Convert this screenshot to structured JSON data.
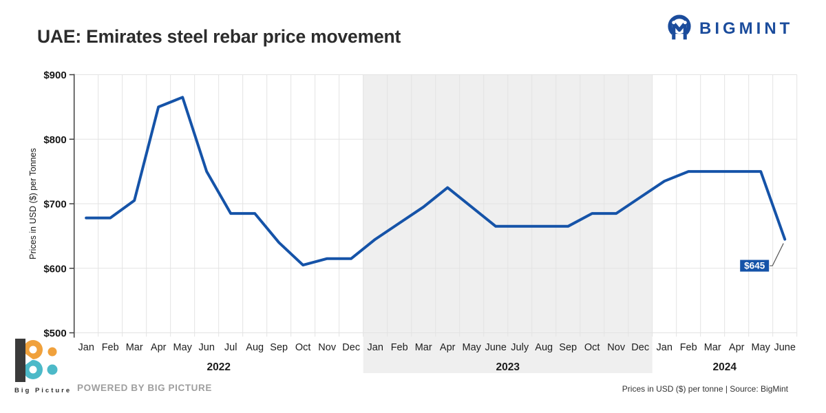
{
  "header": {
    "title": "UAE: Emirates steel rebar price movement",
    "brand": "BIGMINT"
  },
  "chart_data": {
    "type": "line",
    "title": "UAE: Emirates steel rebar price movement",
    "series_name": "Emirates steel rebar price",
    "ylabel": "Prices in USD ($) per Tonnes",
    "xlabel": "",
    "ylim": [
      500,
      900
    ],
    "grid": true,
    "legend": "none",
    "yticks": [
      {
        "label": "$900",
        "value": 900
      },
      {
        "label": "$800",
        "value": 800
      },
      {
        "label": "$700",
        "value": 700
      },
      {
        "label": "$600",
        "value": 600
      },
      {
        "label": "$500",
        "value": 500
      }
    ],
    "groups": [
      {
        "year": "2022",
        "shaded": false,
        "months": [
          "Jan",
          "Feb",
          "Mar",
          "Apr",
          "May",
          "Jun",
          "Jul",
          "Aug",
          "Sep",
          "Oct",
          "Nov",
          "Dec"
        ],
        "values": [
          678,
          678,
          705,
          850,
          865,
          750,
          685,
          685,
          640,
          605,
          615,
          615
        ]
      },
      {
        "year": "2023",
        "shaded": true,
        "months": [
          "Jan",
          "Feb",
          "Mar",
          "Apr",
          "May",
          "June",
          "July",
          "Aug",
          "Sep",
          "Oct",
          "Nov",
          "Dec"
        ],
        "values": [
          645,
          670,
          695,
          725,
          695,
          665,
          665,
          665,
          665,
          685,
          685,
          710
        ]
      },
      {
        "year": "2024",
        "shaded": false,
        "months": [
          "Jan",
          "Feb",
          "Mar",
          "Apr",
          "May",
          "June"
        ],
        "values": [
          735,
          750,
          750,
          750,
          750,
          645
        ]
      }
    ],
    "annotation": {
      "label": "$645",
      "point_index": 29
    },
    "colors": {
      "line": "#1553a8",
      "shade": "#efefef",
      "gridline": "#e3e3e3",
      "axis": "#3f3f3f",
      "annotation_bg": "#1553a8",
      "annotation_text": "#ffffff",
      "tick_text": "#161616"
    }
  },
  "footer": {
    "logo_text": "Big Picture",
    "powered_by": "POWERED BY BIG PICTURE",
    "note": "Prices in USD ($) per tonne | Source: BigMint"
  }
}
